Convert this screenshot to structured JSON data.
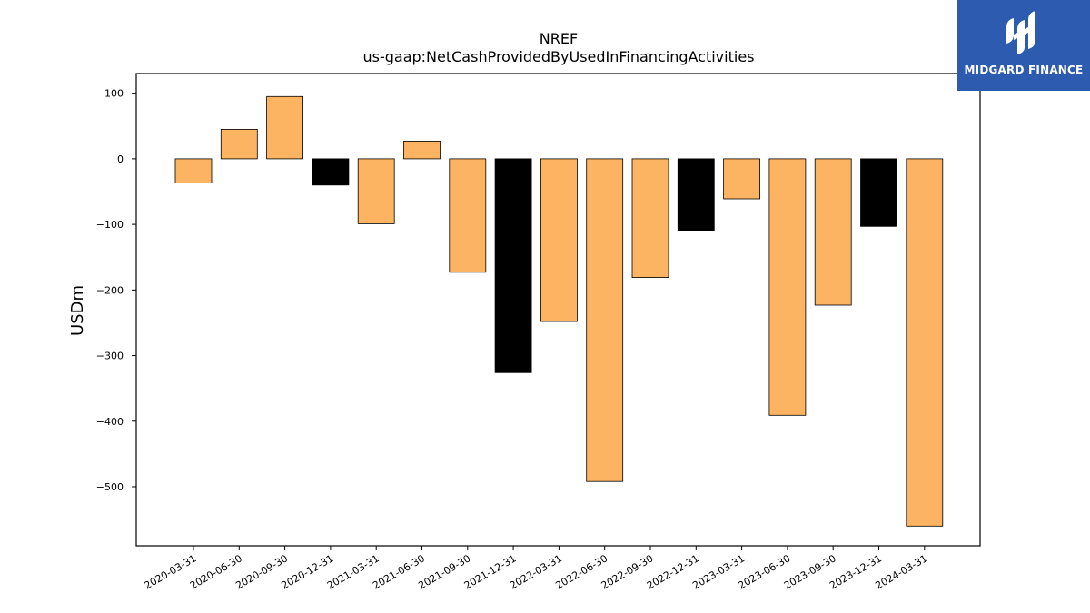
{
  "chart_data": {
    "type": "bar",
    "title": "NREF",
    "subtitle": "us-gaap:NetCashProvidedByUsedInFinancingActivities",
    "xlabel": "",
    "ylabel": "USDm",
    "ylim": [
      -590,
      130
    ],
    "yticks": [
      100,
      0,
      -100,
      -200,
      -300,
      -400,
      -500
    ],
    "ytick_labels": [
      "100",
      "0",
      "−100",
      "−200",
      "−300",
      "−400",
      "−500"
    ],
    "grid": false,
    "legend": "none",
    "categories": [
      "2020-03-31",
      "2020-06-30",
      "2020-09-30",
      "2020-12-31",
      "2021-03-31",
      "2021-06-30",
      "2021-09-30",
      "2021-12-31",
      "2022-03-31",
      "2022-06-30",
      "2022-09-30",
      "2022-12-31",
      "2023-03-31",
      "2023-06-30",
      "2023-09-30",
      "2023-12-31",
      "2024-03-31"
    ],
    "values": [
      -37,
      45,
      95,
      -40,
      -99,
      27,
      -173,
      -326,
      -248,
      -492,
      -181,
      -109,
      -61,
      -391,
      -223,
      -103,
      -560
    ],
    "colors": [
      "#fdb462",
      "#fdb462",
      "#fdb462",
      "#000000",
      "#fdb462",
      "#fdb462",
      "#fdb462",
      "#000000",
      "#fdb462",
      "#fdb462",
      "#fdb462",
      "#000000",
      "#fdb462",
      "#fdb462",
      "#fdb462",
      "#000000",
      "#fdb462"
    ]
  },
  "logo": {
    "text": "MIDGARD FINANCE",
    "background": "#2d5bb0",
    "icon": "midgard-monogram-icon"
  }
}
